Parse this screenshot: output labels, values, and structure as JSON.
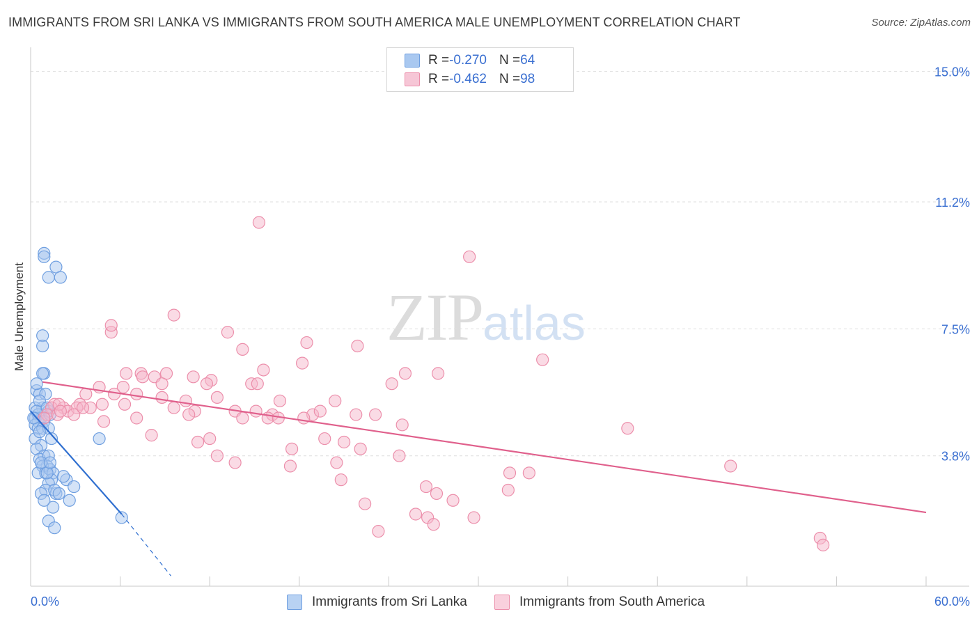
{
  "title": "IMMIGRANTS FROM SRI LANKA VS IMMIGRANTS FROM SOUTH AMERICA MALE UNEMPLOYMENT CORRELATION CHART",
  "source": "Source: ZipAtlas.com",
  "watermark": {
    "zip": "ZIP",
    "atlas": "atlas"
  },
  "colors": {
    "blue_fill": "#a9c8f0",
    "blue_stroke": "#6f9fe0",
    "blue_line": "#2f6fd0",
    "pink_fill": "#f6b8cb",
    "pink_stroke": "#ec8fab",
    "pink_line": "#e0608c",
    "tick_label": "#3a6fd1",
    "grid": "#dedede"
  },
  "legend": {
    "rows": [
      {
        "r_label": "R = ",
        "r_value": "-0.270",
        "n_label": "N = ",
        "n_value": "64"
      },
      {
        "r_label": "R = ",
        "r_value": "-0.462",
        "n_label": "N = ",
        "n_value": "98"
      }
    ]
  },
  "chart_data": {
    "type": "scatter",
    "title": "IMMIGRANTS FROM SRI LANKA VS IMMIGRANTS FROM SOUTH AMERICA MALE UNEMPLOYMENT CORRELATION CHART",
    "xlabel": "",
    "ylabel": "Male Unemployment",
    "xlim": [
      0,
      60
    ],
    "ylim": [
      0,
      15.5
    ],
    "x_tick_labels": [
      {
        "value": 0,
        "label": "0.0%"
      },
      {
        "value": 60,
        "label": "60.0%"
      }
    ],
    "y_tick_labels": [
      {
        "value": 3.8,
        "label": "3.8%"
      },
      {
        "value": 7.5,
        "label": "7.5%"
      },
      {
        "value": 11.2,
        "label": "11.2%"
      },
      {
        "value": 15.0,
        "label": "15.0%"
      }
    ],
    "grid": true,
    "series": [
      {
        "name": "Immigrants from Sri Lanka",
        "color": "blue",
        "trend": {
          "x": [
            0,
            6.1
          ],
          "y": [
            5.1,
            2.1
          ],
          "extend_x": [
            6.1,
            9.4
          ],
          "extend_y": [
            2.1,
            0.3
          ]
        },
        "points": [
          [
            0.4,
            5.7
          ],
          [
            0.6,
            5.6
          ],
          [
            1.0,
            5.6
          ],
          [
            0.8,
            5.2
          ],
          [
            0.3,
            5.2
          ],
          [
            0.5,
            5.0
          ],
          [
            0.7,
            4.9
          ],
          [
            1.2,
            5.1
          ],
          [
            0.3,
            4.9
          ],
          [
            0.5,
            4.8
          ],
          [
            0.9,
            4.8
          ],
          [
            0.3,
            4.7
          ],
          [
            0.5,
            4.6
          ],
          [
            0.8,
            4.6
          ],
          [
            1.2,
            4.6
          ],
          [
            0.3,
            4.3
          ],
          [
            0.7,
            4.1
          ],
          [
            1.4,
            4.3
          ],
          [
            0.4,
            4.0
          ],
          [
            0.9,
            3.8
          ],
          [
            0.6,
            3.7
          ],
          [
            1.2,
            3.8
          ],
          [
            1.1,
            3.5
          ],
          [
            0.8,
            3.5
          ],
          [
            0.5,
            3.3
          ],
          [
            1.0,
            3.3
          ],
          [
            1.3,
            3.4
          ],
          [
            1.5,
            3.3
          ],
          [
            1.4,
            3.1
          ],
          [
            1.2,
            3.0
          ],
          [
            2.4,
            3.1
          ],
          [
            2.2,
            3.2
          ],
          [
            2.9,
            2.9
          ],
          [
            1.0,
            2.8
          ],
          [
            1.7,
            2.7
          ],
          [
            0.7,
            2.7
          ],
          [
            1.5,
            2.3
          ],
          [
            1.2,
            1.9
          ],
          [
            1.6,
            1.7
          ],
          [
            4.6,
            4.3
          ],
          [
            6.1,
            2.0
          ],
          [
            0.9,
            6.2
          ],
          [
            0.8,
            6.2
          ],
          [
            0.8,
            7.3
          ],
          [
            0.8,
            7.0
          ],
          [
            0.9,
            9.7
          ],
          [
            0.9,
            9.6
          ],
          [
            1.7,
            9.3
          ],
          [
            1.2,
            9.0
          ],
          [
            2.0,
            9.0
          ],
          [
            0.4,
            5.9
          ],
          [
            0.6,
            5.4
          ],
          [
            1.3,
            5.0
          ],
          [
            0.4,
            5.1
          ],
          [
            1.1,
            5.2
          ],
          [
            0.2,
            4.9
          ],
          [
            0.6,
            4.5
          ],
          [
            1.6,
            2.8
          ],
          [
            1.9,
            2.7
          ],
          [
            2.6,
            2.5
          ],
          [
            0.9,
            2.5
          ],
          [
            1.1,
            3.3
          ],
          [
            0.7,
            3.6
          ],
          [
            1.3,
            3.6
          ]
        ]
      },
      {
        "name": "Immigrants from South America",
        "color": "pink",
        "trend": {
          "x": [
            0.8,
            60
          ],
          "y": [
            5.95,
            2.15
          ]
        },
        "points": [
          [
            15.3,
            10.6
          ],
          [
            29.4,
            9.6
          ],
          [
            9.6,
            7.9
          ],
          [
            5.4,
            7.4
          ],
          [
            5.4,
            7.6
          ],
          [
            13.2,
            7.4
          ],
          [
            18.5,
            7.1
          ],
          [
            14.2,
            6.9
          ],
          [
            21.9,
            7.0
          ],
          [
            34.3,
            6.6
          ],
          [
            15.6,
            6.3
          ],
          [
            18.2,
            6.5
          ],
          [
            6.4,
            6.2
          ],
          [
            7.4,
            6.2
          ],
          [
            8.3,
            6.1
          ],
          [
            7.5,
            6.1
          ],
          [
            9.1,
            6.2
          ],
          [
            10.9,
            6.1
          ],
          [
            12.1,
            6.0
          ],
          [
            25.1,
            6.2
          ],
          [
            27.3,
            6.2
          ],
          [
            4.6,
            5.8
          ],
          [
            6.2,
            5.8
          ],
          [
            8.8,
            5.9
          ],
          [
            11.8,
            5.9
          ],
          [
            14.8,
            5.9
          ],
          [
            15.2,
            5.9
          ],
          [
            24.2,
            5.9
          ],
          [
            3.7,
            5.6
          ],
          [
            5.6,
            5.6
          ],
          [
            7.1,
            5.6
          ],
          [
            8.8,
            5.5
          ],
          [
            10.4,
            5.4
          ],
          [
            12.5,
            5.5
          ],
          [
            16.7,
            5.4
          ],
          [
            20.4,
            5.4
          ],
          [
            4.8,
            5.3
          ],
          [
            6.3,
            5.3
          ],
          [
            9.6,
            5.2
          ],
          [
            11.0,
            5.1
          ],
          [
            13.7,
            5.1
          ],
          [
            15.1,
            5.1
          ],
          [
            16.2,
            5.0
          ],
          [
            18.9,
            5.0
          ],
          [
            19.4,
            5.1
          ],
          [
            21.8,
            5.0
          ],
          [
            23.1,
            5.0
          ],
          [
            1.6,
            5.3
          ],
          [
            2.2,
            5.2
          ],
          [
            3.3,
            5.3
          ],
          [
            4.0,
            5.2
          ],
          [
            1.4,
            5.2
          ],
          [
            2.5,
            5.1
          ],
          [
            1.1,
            5.0
          ],
          [
            7.1,
            4.9
          ],
          [
            10.6,
            5.0
          ],
          [
            14.2,
            4.9
          ],
          [
            15.9,
            4.9
          ],
          [
            16.6,
            4.9
          ],
          [
            18.3,
            4.9
          ],
          [
            24.9,
            4.7
          ],
          [
            4.9,
            4.8
          ],
          [
            40.0,
            4.6
          ],
          [
            8.1,
            4.4
          ],
          [
            11.2,
            4.2
          ],
          [
            12.0,
            4.3
          ],
          [
            19.7,
            4.3
          ],
          [
            21.0,
            4.2
          ],
          [
            22.1,
            4.0
          ],
          [
            17.5,
            4.0
          ],
          [
            12.5,
            3.8
          ],
          [
            13.7,
            3.6
          ],
          [
            20.5,
            3.6
          ],
          [
            24.7,
            3.8
          ],
          [
            17.4,
            3.5
          ],
          [
            32.1,
            3.3
          ],
          [
            33.4,
            3.3
          ],
          [
            20.8,
            3.1
          ],
          [
            26.5,
            2.9
          ],
          [
            27.2,
            2.7
          ],
          [
            28.3,
            2.5
          ],
          [
            32.0,
            2.8
          ],
          [
            46.9,
            3.5
          ],
          [
            22.4,
            2.4
          ],
          [
            25.8,
            2.1
          ],
          [
            26.6,
            2.0
          ],
          [
            29.7,
            2.0
          ],
          [
            27.0,
            1.8
          ],
          [
            23.3,
            1.6
          ],
          [
            52.9,
            1.4
          ],
          [
            53.1,
            1.2
          ],
          [
            1.8,
            5.0
          ],
          [
            3.1,
            5.2
          ],
          [
            2.9,
            5.0
          ],
          [
            0.9,
            4.9
          ],
          [
            1.9,
            5.3
          ],
          [
            2.0,
            5.1
          ],
          [
            3.5,
            5.2
          ]
        ]
      }
    ]
  }
}
